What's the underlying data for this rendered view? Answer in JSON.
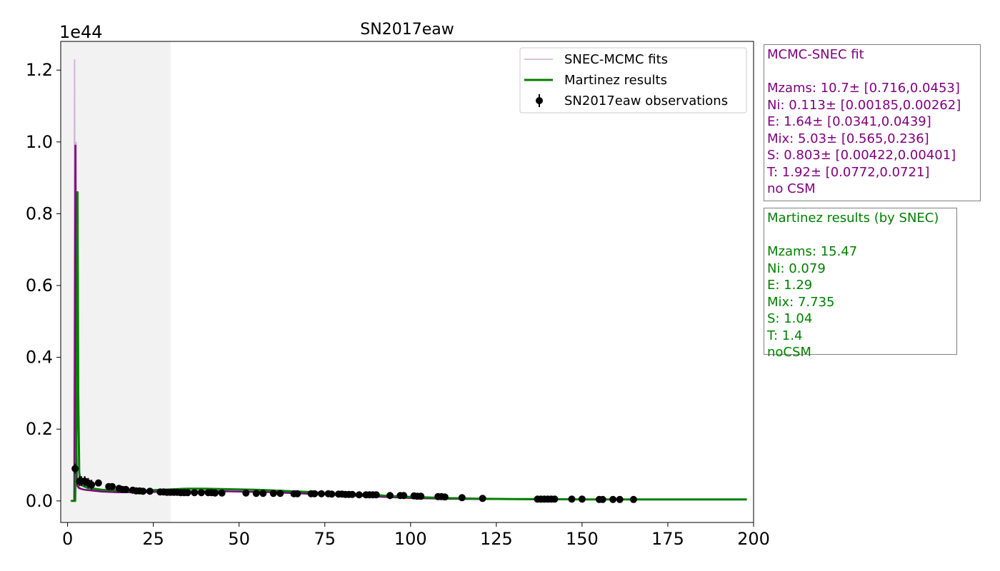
{
  "chart_data": {
    "type": "line",
    "title": "SN2017eaw",
    "xlabel": "",
    "ylabel": "",
    "y_offset_label": "1e44",
    "xlim": [
      -2,
      200
    ],
    "ylim": [
      -0.06,
      1.28
    ],
    "x_ticks": [
      0,
      25,
      50,
      75,
      100,
      125,
      150,
      175,
      200
    ],
    "x_tick_labels": [
      "0",
      "25",
      "50",
      "75",
      "100",
      "125",
      "150",
      "175",
      "200"
    ],
    "y_ticks": [
      0.0,
      0.2,
      0.4,
      0.6,
      0.8,
      1.0,
      1.2
    ],
    "y_tick_labels": [
      "0.0",
      "0.2",
      "0.4",
      "0.6",
      "0.8",
      "1.0",
      "1.2"
    ],
    "shaded_region": {
      "x": [
        -2,
        30
      ],
      "color": "#f2f2f2"
    },
    "grid": false,
    "legend": {
      "placement": "top-right",
      "entries": [
        "SNEC-MCMC fits",
        "Martinez results",
        "SN2017eaw observations"
      ]
    },
    "series": [
      {
        "name": "SNEC-MCMC fits",
        "kind": "line",
        "color": "#800080",
        "x": [
          1.0,
          2.0,
          2.3,
          2.5,
          2.7,
          3.0,
          3.5,
          4.5,
          6,
          10,
          15,
          20,
          25,
          30,
          35,
          40,
          45,
          50,
          55,
          60,
          65,
          70,
          75,
          80,
          85,
          90,
          95,
          100,
          110,
          120,
          130,
          140,
          150,
          160,
          170,
          180,
          198
        ],
        "y": [
          0.0,
          0.0,
          0.99,
          0.2,
          0.05,
          0.04,
          0.035,
          0.032,
          0.03,
          0.026,
          0.024,
          0.024,
          0.025,
          0.026,
          0.027,
          0.027,
          0.027,
          0.026,
          0.025,
          0.024,
          0.022,
          0.02,
          0.018,
          0.016,
          0.014,
          0.012,
          0.01,
          0.008,
          0.006,
          0.005,
          0.005,
          0.004,
          0.004,
          0.004,
          0.004,
          0.004,
          0.004
        ]
      },
      {
        "name": "Martinez results",
        "kind": "line",
        "color": "#008000",
        "x": [
          1.0,
          2.2,
          2.6,
          2.9,
          3.1,
          3.4,
          3.8,
          4.5,
          6,
          10,
          15,
          20,
          25,
          30,
          35,
          40,
          45,
          50,
          55,
          60,
          65,
          70,
          75,
          80,
          85,
          90,
          95,
          100,
          110,
          120,
          130,
          140,
          150,
          160,
          170,
          180,
          198
        ],
        "y": [
          0.0,
          0.0,
          0.2,
          0.86,
          0.3,
          0.08,
          0.05,
          0.042,
          0.036,
          0.031,
          0.029,
          0.028,
          0.03,
          0.032,
          0.034,
          0.034,
          0.033,
          0.032,
          0.031,
          0.029,
          0.027,
          0.025,
          0.022,
          0.02,
          0.018,
          0.016,
          0.013,
          0.011,
          0.008,
          0.006,
          0.005,
          0.005,
          0.004,
          0.004,
          0.004,
          0.004,
          0.004
        ]
      },
      {
        "name": "SN2017eaw observations",
        "kind": "scatter",
        "color": "#000000",
        "x": [
          2.2,
          3.5,
          4.0,
          5.0,
          6.0,
          7.0,
          9.0,
          12.0,
          13.0,
          15.0,
          16.0,
          17.0,
          19.0,
          20.0,
          21.0,
          22.0,
          24.0,
          27.0,
          28.0,
          29.0,
          30.0,
          31.0,
          32.0,
          33.0,
          34.0,
          35.0,
          37.0,
          39.0,
          41.0,
          42.0,
          43.0,
          45.0,
          52.0,
          55.0,
          57.0,
          60.0,
          62.0,
          66.0,
          67.0,
          71.0,
          72.0,
          74.0,
          76.0,
          77.0,
          79.0,
          80.0,
          81.0,
          82.0,
          83.0,
          85.0,
          87.0,
          88.0,
          89.0,
          90.0,
          94.0,
          97.0,
          98.0,
          101.0,
          102.0,
          103.0,
          108.0,
          109.0,
          110.0,
          115.0,
          121.0,
          137.0,
          138.0,
          139.0,
          140.0,
          141.0,
          142.0,
          147.0,
          150.0,
          155.0,
          156.0,
          159.0,
          161.0,
          165.0
        ],
        "y": [
          0.09,
          0.055,
          0.055,
          0.055,
          0.05,
          0.045,
          0.05,
          0.04,
          0.04,
          0.035,
          0.032,
          0.032,
          0.03,
          0.028,
          0.028,
          0.027,
          0.027,
          0.025,
          0.025,
          0.024,
          0.024,
          0.024,
          0.024,
          0.023,
          0.023,
          0.023,
          0.023,
          0.023,
          0.023,
          0.023,
          0.022,
          0.022,
          0.022,
          0.021,
          0.021,
          0.021,
          0.021,
          0.02,
          0.02,
          0.02,
          0.02,
          0.02,
          0.02,
          0.019,
          0.019,
          0.019,
          0.018,
          0.018,
          0.018,
          0.017,
          0.017,
          0.017,
          0.017,
          0.017,
          0.015,
          0.015,
          0.015,
          0.014,
          0.013,
          0.013,
          0.012,
          0.012,
          0.011,
          0.009,
          0.007,
          0.005,
          0.005,
          0.005,
          0.005,
          0.005,
          0.005,
          0.005,
          0.005,
          0.004,
          0.004,
          0.004,
          0.004,
          0.004
        ]
      }
    ]
  },
  "mcmc_panel": {
    "heading": "MCMC-SNEC fit",
    "lines": [
      "Mzams: 10.7± [0.716,0.0453]",
      "Ni: 0.113± [0.00185,0.00262]",
      "E: 1.64± [0.0341,0.0439]",
      "Mix: 5.03± [0.565,0.236]",
      "S: 0.803± [0.00422,0.00401]",
      "T: 1.92± [0.0772,0.0721]",
      "no CSM"
    ],
    "color": "#800080"
  },
  "martinez_panel": {
    "heading": "Martinez results (by SNEC)",
    "lines": [
      "Mzams: 15.47",
      "Ni: 0.079",
      "E: 1.29",
      "Mix: 7.735",
      "S: 1.04",
      "T: 1.4",
      "noCSM"
    ],
    "color": "#008000"
  }
}
